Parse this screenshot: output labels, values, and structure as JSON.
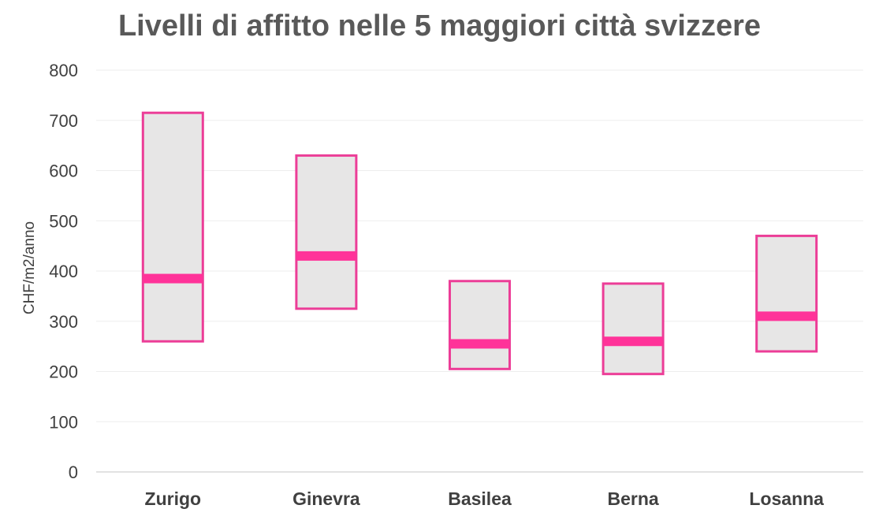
{
  "chart_data": {
    "type": "bar",
    "subtype": "floating-range-with-median",
    "title": "Livelli di affitto nelle 5 maggiori città svizzere",
    "xlabel": "",
    "ylabel": "CHF/m2/anno",
    "ylim": [
      0,
      800
    ],
    "yticks": [
      0,
      100,
      200,
      300,
      400,
      500,
      600,
      700,
      800
    ],
    "grid": true,
    "legend": "none",
    "categories": [
      "Zurigo",
      "Ginevra",
      "Basilea",
      "Berna",
      "Losanna"
    ],
    "series": [
      {
        "name": "min",
        "values": [
          260,
          325,
          205,
          195,
          240
        ]
      },
      {
        "name": "max",
        "values": [
          715,
          630,
          380,
          375,
          470
        ]
      },
      {
        "name": "median",
        "values": [
          385,
          430,
          255,
          260,
          310
        ]
      }
    ],
    "colors": {
      "box_fill": "#e7e6e6",
      "box_border": "#ec3d97",
      "median": "#ff3399",
      "grid": "#ededed",
      "axis": "#d9d9d9"
    }
  }
}
